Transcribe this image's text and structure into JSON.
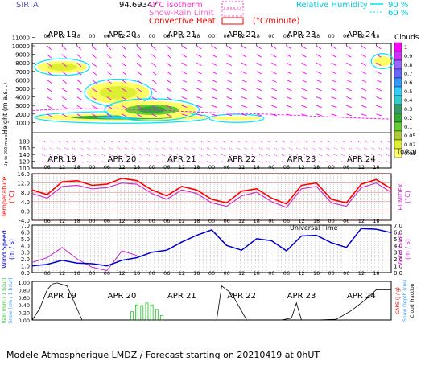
{
  "header": {
    "site": "SIRTA",
    "coords": "94.69347",
    "legend_isotherm_zero": "0°C isotherm",
    "legend_snow_rain": "Snow-Rain Limit",
    "legend_convective": "Convective Heat.",
    "legend_convective_unit": "(°C/minute)",
    "legend_rh": "Relative Humidity",
    "rh_90": "90 %",
    "rh_60": "60 %"
  },
  "axes": {
    "days": [
      "APR 19",
      "APR 20",
      "APR 21",
      "APR 22",
      "APR 23",
      "APR 24"
    ],
    "hours": [
      "06",
      "12",
      "18",
      "00",
      "06",
      "12",
      "18",
      "00",
      "06",
      "12",
      "18",
      "00",
      "06",
      "12",
      "18",
      "00",
      "06",
      "12",
      "18",
      "00",
      "06",
      "12",
      "18"
    ],
    "height_label": "Height (m a.s.l.)",
    "height_ticks_upper": [
      "11000",
      "10000",
      "9000",
      "8000",
      "7000",
      "6000",
      "5000",
      "4000",
      "3000",
      "2000",
      "1000"
    ],
    "lower_label": "Up to 200 m a.s.l.",
    "height_ticks_lower": [
      "180",
      "160",
      "140",
      "120",
      "100"
    ],
    "clouds_title": "Clouds",
    "clouds_unit": "(g/kg)",
    "clouds_scale": [
      "1",
      "0.9",
      "0.8",
      "0.7",
      "0.6",
      "0.5",
      "0.4",
      "0.3",
      "0.2",
      "0.1",
      "0.05",
      "0.02",
      "0.01"
    ],
    "clouds_colors": [
      "#ff00ff",
      "#cc33ff",
      "#9966ff",
      "#6666ff",
      "#3399ff",
      "#33ccff",
      "#33cccc",
      "#339966",
      "#33aa33",
      "#66cc33",
      "#aacc33",
      "#ddee33",
      "#ffff66"
    ],
    "temp_label": "Temperature",
    "temp_unit": "(°C)",
    "humidex_label": "HUMIDEX",
    "humidex_unit": "(°C)",
    "temp_ticks": [
      "16.0",
      "12.0",
      "8.0",
      "4.0",
      "0.0",
      "-4.0"
    ],
    "utc_label": "Universal Time",
    "wind_label": "Wind Speed",
    "wind_unit": "(m / s)",
    "gust_label": "Wind Gust",
    "gust_unit": "(m / s)",
    "wind_ticks": [
      "7.0",
      "6.0",
      "5.0",
      "4.0",
      "3.0",
      "2.0",
      "1.0",
      "0.0"
    ],
    "rain_label": "Rain (mm / 1 hour)",
    "snow_label": "Snow (cm / 1 hour)",
    "rain_ticks": [
      "1.00",
      "0.80",
      "0.60",
      "0.40",
      "0.20",
      "0.00"
    ],
    "cape_label": "CAPE (J / g)",
    "snowdepth_label": "Snow Depth (cm)",
    "cloudfrac_label": "Cloud Fraction"
  },
  "footer": "Modele Atmospherique LMDZ / Forecast starting on 20210419 at 0hUT",
  "colors": {
    "temperature": "#ff0000",
    "humidex": "#cc33cc",
    "wind": "#0000cc",
    "gust": "#cc33cc",
    "rain": "#33cc33",
    "cloudfrac": "#000000",
    "rh": "#00e5ee",
    "wind_vectors": "#ff00ff",
    "freezing_line": "#ff00ff"
  },
  "chart_data": [
    {
      "type": "heatmap",
      "name": "clouds_height",
      "xlim_hours": [
        0,
        144
      ],
      "ylim_m": [
        0,
        11000
      ],
      "description_values": "cloud water content (g/kg) vs time and height",
      "blobs": [
        {
          "t0": 2,
          "t1": 22,
          "h0": 6800,
          "h1": 8200,
          "peak": 0.05
        },
        {
          "t0": 22,
          "t1": 47,
          "h0": 3200,
          "h1": 5800,
          "peak": 0.05
        },
        {
          "t0": 2,
          "t1": 70,
          "h0": 1200,
          "h1": 2000,
          "peak": 0.5
        },
        {
          "t0": 30,
          "t1": 66,
          "h0": 1500,
          "h1": 3500,
          "peak": 0.2
        },
        {
          "t0": 72,
          "t1": 92,
          "h0": 1300,
          "h1": 1700,
          "peak": 0.02
        },
        {
          "t0": 137,
          "t1": 144,
          "h0": 7600,
          "h1": 8800,
          "peak": 0.02
        }
      ]
    },
    {
      "type": "line",
      "name": "temperature",
      "x_hours": [
        0,
        6,
        12,
        18,
        24,
        30,
        36,
        42,
        48,
        54,
        60,
        66,
        72,
        78,
        84,
        90,
        96,
        102,
        108,
        114,
        120,
        126,
        132,
        138,
        144
      ],
      "series": [
        {
          "name": "Temperature",
          "values": [
            9.0,
            7.0,
            12.5,
            13.0,
            11.0,
            11.5,
            14.0,
            13.0,
            9.0,
            6.5,
            10.5,
            9.0,
            5.0,
            3.5,
            8.5,
            9.5,
            5.5,
            3.0,
            11.0,
            12.0,
            5.0,
            3.5,
            11.5,
            13.5,
            9.5
          ]
        },
        {
          "name": "HUMIDEX",
          "values": [
            7.5,
            5.5,
            10.5,
            11.0,
            9.5,
            10.0,
            12.0,
            11.5,
            7.5,
            5.0,
            9.0,
            7.5,
            3.5,
            2.0,
            6.5,
            8.0,
            4.0,
            1.5,
            9.5,
            10.5,
            3.5,
            2.0,
            10.0,
            12.0,
            8.0
          ]
        }
      ],
      "ylim": [
        -4,
        16
      ]
    },
    {
      "type": "line",
      "name": "wind",
      "x_hours": [
        0,
        6,
        12,
        18,
        24,
        30,
        36,
        42,
        48,
        54,
        60,
        66,
        72,
        78,
        84,
        90,
        96,
        102,
        108,
        114,
        120,
        126,
        132,
        138,
        144
      ],
      "series": [
        {
          "name": "Wind Speed",
          "values": [
            1.0,
            1.2,
            1.8,
            1.4,
            1.3,
            1.0,
            1.8,
            2.2,
            3.0,
            3.3,
            4.5,
            5.5,
            6.3,
            4.0,
            3.3,
            5.0,
            4.7,
            3.2,
            5.4,
            5.5,
            4.4,
            3.7,
            6.5,
            6.4,
            5.9
          ]
        },
        {
          "name": "Wind Gust",
          "values": [
            1.5,
            2.2,
            3.7,
            2.0,
            0.8,
            0.3,
            3.2,
            2.5,
            null,
            null,
            null,
            null,
            null,
            null,
            null,
            null,
            null,
            null,
            null,
            null,
            null,
            null,
            null,
            null,
            null
          ]
        }
      ],
      "ylim": [
        0,
        7
      ]
    },
    {
      "type": "bar",
      "name": "rain",
      "x_hours": [
        40,
        42,
        44,
        46,
        48,
        50,
        52
      ],
      "values": [
        0.22,
        0.4,
        0.38,
        0.45,
        0.4,
        0.28,
        0.12
      ],
      "ylim": [
        0,
        1
      ]
    },
    {
      "type": "line",
      "name": "cloud_fraction",
      "x_hours": [
        0,
        3,
        6,
        8,
        10,
        14,
        20,
        30,
        44,
        52,
        56,
        62,
        64,
        66,
        70,
        72,
        74,
        76,
        80,
        86,
        92,
        100,
        104,
        106,
        108,
        114,
        122,
        128,
        134,
        138,
        144
      ],
      "values": [
        0.0,
        0.3,
        0.8,
        0.95,
        0.98,
        0.9,
        0.0,
        0.0,
        0.0,
        0.0,
        0.0,
        0.0,
        0.0,
        0.0,
        0.0,
        0.0,
        0.0,
        0.9,
        0.7,
        0.0,
        0.0,
        0.0,
        0.05,
        0.45,
        0.0,
        0.0,
        0.02,
        0.25,
        0.55,
        0.8,
        0.8
      ],
      "ylim": [
        0,
        1
      ]
    }
  ]
}
